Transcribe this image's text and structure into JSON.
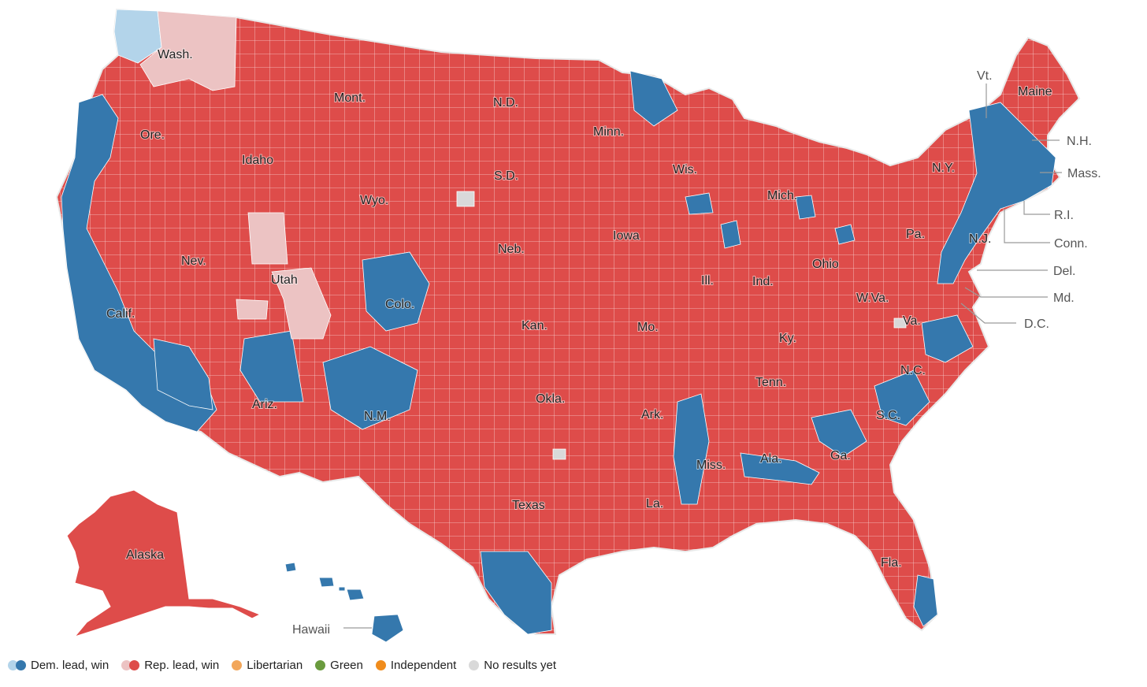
{
  "colors": {
    "dem_win": "#3578ad",
    "dem_lead": "#b3d4ea",
    "rep_win": "#de4c4a",
    "rep_lead": "#ecc3c3",
    "libertarian": "#f2a65a",
    "green": "#6a9b3e",
    "independent": "#f08c1c",
    "no_results": "#d9d9d9",
    "county_border": "#ffffff"
  },
  "states": [
    {
      "id": "wash",
      "label": "Wash."
    },
    {
      "id": "ore",
      "label": "Ore."
    },
    {
      "id": "calif",
      "label": "Calif."
    },
    {
      "id": "idaho",
      "label": "Idaho"
    },
    {
      "id": "nev",
      "label": "Nev."
    },
    {
      "id": "mont",
      "label": "Mont."
    },
    {
      "id": "wyo",
      "label": "Wyo."
    },
    {
      "id": "utah",
      "label": "Utah"
    },
    {
      "id": "colo",
      "label": "Colo."
    },
    {
      "id": "ariz",
      "label": "Ariz."
    },
    {
      "id": "nm",
      "label": "N.M."
    },
    {
      "id": "nd",
      "label": "N.D."
    },
    {
      "id": "sd",
      "label": "S.D."
    },
    {
      "id": "neb",
      "label": "Neb."
    },
    {
      "id": "kan",
      "label": "Kan."
    },
    {
      "id": "okla",
      "label": "Okla."
    },
    {
      "id": "texas",
      "label": "Texas"
    },
    {
      "id": "minn",
      "label": "Minn."
    },
    {
      "id": "iowa",
      "label": "Iowa"
    },
    {
      "id": "mo",
      "label": "Mo."
    },
    {
      "id": "ark",
      "label": "Ark."
    },
    {
      "id": "la",
      "label": "La."
    },
    {
      "id": "wis",
      "label": "Wis."
    },
    {
      "id": "ill",
      "label": "Ill."
    },
    {
      "id": "mich",
      "label": "Mich."
    },
    {
      "id": "ind",
      "label": "Ind."
    },
    {
      "id": "ohio",
      "label": "Ohio"
    },
    {
      "id": "ky",
      "label": "Ky."
    },
    {
      "id": "tenn",
      "label": "Tenn."
    },
    {
      "id": "miss",
      "label": "Miss."
    },
    {
      "id": "ala",
      "label": "Ala."
    },
    {
      "id": "ga",
      "label": "Ga."
    },
    {
      "id": "fla",
      "label": "Fla."
    },
    {
      "id": "sc",
      "label": "S.C."
    },
    {
      "id": "nc",
      "label": "N.C."
    },
    {
      "id": "va",
      "label": "Va."
    },
    {
      "id": "wva",
      "label": "W.Va."
    },
    {
      "id": "pa",
      "label": "Pa."
    },
    {
      "id": "ny",
      "label": "N.Y."
    },
    {
      "id": "nj",
      "label": "N.J."
    },
    {
      "id": "maine",
      "label": "Maine"
    },
    {
      "id": "alaska",
      "label": "Alaska"
    }
  ],
  "callouts": [
    {
      "id": "vt",
      "label": "Vt."
    },
    {
      "id": "nh",
      "label": "N.H."
    },
    {
      "id": "mass",
      "label": "Mass."
    },
    {
      "id": "ri",
      "label": "R.I."
    },
    {
      "id": "conn",
      "label": "Conn."
    },
    {
      "id": "del",
      "label": "Del."
    },
    {
      "id": "md",
      "label": "Md."
    },
    {
      "id": "dc",
      "label": "D.C."
    },
    {
      "id": "hawaii",
      "label": "Hawaii"
    }
  ],
  "legend": [
    {
      "label": "Dem. lead, win",
      "colors": [
        "#b3d4ea",
        "#3578ad"
      ]
    },
    {
      "label": "Rep. lead, win",
      "colors": [
        "#ecc3c3",
        "#de4c4a"
      ]
    },
    {
      "label": "Libertarian",
      "colors": [
        "#f2a65a"
      ]
    },
    {
      "label": "Green",
      "colors": [
        "#6a9b3e"
      ]
    },
    {
      "label": "Independent",
      "colors": [
        "#f08c1c"
      ]
    },
    {
      "label": "No results yet",
      "colors": [
        "#d9d9d9"
      ]
    }
  ]
}
